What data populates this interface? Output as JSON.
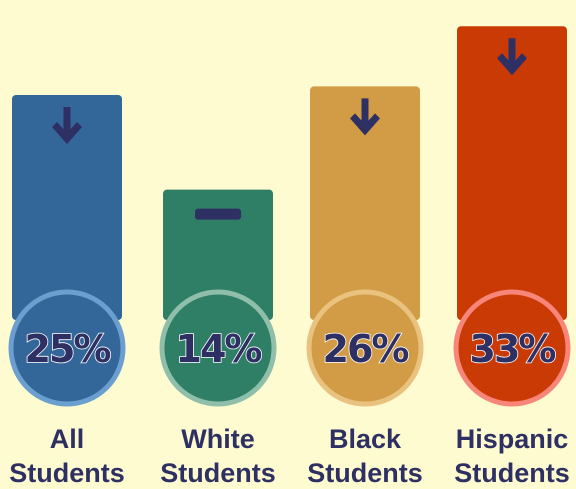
{
  "chart_data": {
    "type": "bar",
    "title": "",
    "xlabel": "",
    "ylabel": "",
    "categories": [
      {
        "line1": "All",
        "line2": "Students"
      },
      {
        "line1": "White",
        "line2": "Students"
      },
      {
        "line1": "Black",
        "line2": "Students"
      },
      {
        "line1": "Hispanic",
        "line2": "Students"
      }
    ],
    "values": [
      25,
      14,
      26,
      33
    ],
    "value_labels": [
      "25%",
      "14%",
      "26%",
      "33%"
    ],
    "trend_icons": [
      "down-arrow-icon",
      "flat-dash-icon",
      "down-arrow-icon",
      "down-arrow-icon"
    ],
    "bar_colors": [
      "#336699",
      "#2e7f66",
      "#d19c45",
      "#c93a05"
    ],
    "circle_ring_colors": [
      "#6a9fcf",
      "#8fbfaa",
      "#e8c27e",
      "#f7857a"
    ],
    "text_color": "#2e2f63",
    "background_color": "#fdfbcf",
    "ylim": [
      0,
      35
    ]
  }
}
